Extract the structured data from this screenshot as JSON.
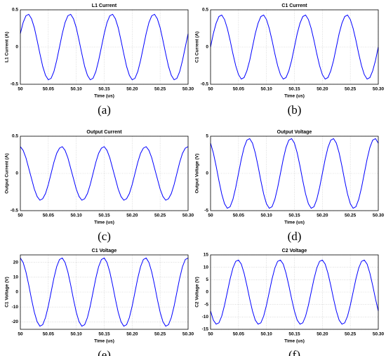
{
  "chart_data": [
    {
      "type": "line",
      "title": "L1 Current",
      "xlabel": "Time (us)",
      "ylabel": "L1 Current (A)",
      "caption": "(a)",
      "color": "#0000ff",
      "grid": true,
      "x": [
        50,
        50.005,
        50.01,
        50.015,
        50.02,
        50.025,
        50.03,
        50.035,
        50.04,
        50.045,
        50.05,
        50.055,
        50.06,
        50.065,
        50.07,
        50.075,
        50.08,
        50.085,
        50.09,
        50.095,
        50.1,
        50.105,
        50.11,
        50.115,
        50.12,
        50.125,
        50.13,
        50.135,
        50.14,
        50.145,
        50.15,
        50.155,
        50.16,
        50.165,
        50.17,
        50.175,
        50.18,
        50.185,
        50.19,
        50.195,
        50.2,
        50.205,
        50.21,
        50.215,
        50.22,
        50.225,
        50.23,
        50.235,
        50.24,
        50.245,
        50.25,
        50.255,
        50.26,
        50.265,
        50.27,
        50.275,
        50.28,
        50.285,
        50.29,
        50.295,
        50.3
      ],
      "values": [
        0.18,
        0.33,
        0.42,
        0.44,
        0.38,
        0.26,
        0.09,
        -0.09,
        -0.26,
        -0.38,
        -0.44,
        -0.42,
        -0.33,
        -0.18,
        0,
        0.18,
        0.33,
        0.42,
        0.44,
        0.38,
        0.26,
        0.09,
        -0.09,
        -0.26,
        -0.38,
        -0.44,
        -0.42,
        -0.33,
        -0.18,
        0,
        0.18,
        0.33,
        0.42,
        0.44,
        0.38,
        0.26,
        0.09,
        -0.09,
        -0.26,
        -0.38,
        -0.44,
        -0.42,
        -0.33,
        -0.18,
        0,
        0.18,
        0.33,
        0.42,
        0.44,
        0.38,
        0.26,
        0.09,
        -0.09,
        -0.26,
        -0.38,
        -0.44,
        -0.42,
        -0.33,
        -0.18,
        0,
        0.18
      ],
      "xlim": [
        50,
        50.3
      ],
      "xticks": [
        50,
        50.05,
        {
          "value": 50.1,
          "label": "50.10"
        },
        50.15,
        {
          "value": 50.2,
          "label": "50.20"
        },
        50.25,
        {
          "value": 50.3,
          "label": "50.30"
        }
      ],
      "ylim": [
        -0.5,
        0.5
      ],
      "yticks": [
        -0.5,
        0,
        0.5
      ]
    },
    {
      "type": "line",
      "title": "C1 Current",
      "xlabel": "Time (us)",
      "ylabel": "C1 Current (A)",
      "caption": "(b)",
      "color": "#0000ff",
      "grid": true,
      "x": [
        50,
        50.005,
        50.01,
        50.015,
        50.02,
        50.025,
        50.03,
        50.035,
        50.04,
        50.045,
        50.05,
        50.055,
        50.06,
        50.065,
        50.07,
        50.075,
        50.08,
        50.085,
        50.09,
        50.095,
        50.1,
        50.105,
        50.11,
        50.115,
        50.12,
        50.125,
        50.13,
        50.135,
        50.14,
        50.145,
        50.15,
        50.155,
        50.16,
        50.165,
        50.17,
        50.175,
        50.18,
        50.185,
        50.19,
        50.195,
        50.2,
        50.205,
        50.21,
        50.215,
        50.22,
        50.225,
        50.23,
        50.235,
        50.24,
        50.245,
        50.25,
        50.255,
        50.26,
        50.265,
        50.27,
        50.275,
        50.28,
        50.285,
        50.29,
        50.295,
        50.3
      ],
      "values": [
        0,
        0.18,
        0.32,
        0.41,
        0.43,
        0.37,
        0.25,
        0.09,
        -0.09,
        -0.25,
        -0.37,
        -0.43,
        -0.41,
        -0.32,
        -0.18,
        0,
        0.18,
        0.32,
        0.41,
        0.43,
        0.37,
        0.25,
        0.09,
        -0.09,
        -0.25,
        -0.37,
        -0.43,
        -0.41,
        -0.32,
        -0.18,
        0,
        0.18,
        0.32,
        0.41,
        0.43,
        0.37,
        0.25,
        0.09,
        -0.09,
        -0.25,
        -0.37,
        -0.43,
        -0.41,
        -0.32,
        -0.18,
        0,
        0.18,
        0.32,
        0.41,
        0.43,
        0.37,
        0.25,
        0.09,
        -0.09,
        -0.25,
        -0.37,
        -0.43,
        -0.41,
        -0.32,
        -0.18,
        0
      ],
      "xlim": [
        50,
        50.3
      ],
      "xticks": [
        50,
        50.05,
        {
          "value": 50.1,
          "label": "50.10"
        },
        50.15,
        {
          "value": 50.2,
          "label": "50.20"
        },
        50.25,
        {
          "value": 50.3,
          "label": "50.30"
        }
      ],
      "ylim": [
        -0.5,
        0.5
      ],
      "yticks": [
        -0.5,
        0,
        0.5
      ]
    },
    {
      "type": "line",
      "title": "Output Current",
      "xlabel": "Time (us)",
      "ylabel": "Output Current (A)",
      "caption": "(c)",
      "color": "#0000ff",
      "grid": true,
      "x": [
        50,
        50.005,
        50.01,
        50.015,
        50.02,
        50.025,
        50.03,
        50.035,
        50.04,
        50.045,
        50.05,
        50.055,
        50.06,
        50.065,
        50.07,
        50.075,
        50.08,
        50.085,
        50.09,
        50.095,
        50.1,
        50.105,
        50.11,
        50.115,
        50.12,
        50.125,
        50.13,
        50.135,
        50.14,
        50.145,
        50.15,
        50.155,
        50.16,
        50.165,
        50.17,
        50.175,
        50.18,
        50.185,
        50.19,
        50.195,
        50.2,
        50.205,
        50.21,
        50.215,
        50.22,
        50.225,
        50.23,
        50.235,
        50.24,
        50.245,
        50.25,
        50.255,
        50.26,
        50.265,
        50.27,
        50.275,
        50.28,
        50.285,
        50.29,
        50.295,
        50.3
      ],
      "values": [
        0.36,
        0.31,
        0.21,
        0.07,
        -0.07,
        -0.21,
        -0.31,
        -0.36,
        -0.34,
        -0.27,
        -0.15,
        0,
        0.15,
        0.27,
        0.34,
        0.36,
        0.31,
        0.21,
        0.07,
        -0.07,
        -0.21,
        -0.31,
        -0.36,
        -0.34,
        -0.27,
        -0.15,
        0,
        0.15,
        0.27,
        0.34,
        0.36,
        0.31,
        0.21,
        0.07,
        -0.07,
        -0.21,
        -0.31,
        -0.36,
        -0.34,
        -0.27,
        -0.15,
        0,
        0.15,
        0.27,
        0.34,
        0.36,
        0.31,
        0.21,
        0.07,
        -0.07,
        -0.21,
        -0.31,
        -0.36,
        -0.34,
        -0.27,
        -0.15,
        0,
        0.15,
        0.27,
        0.34,
        0.36
      ],
      "xlim": [
        50,
        50.3
      ],
      "xticks": [
        50,
        50.05,
        {
          "value": 50.1,
          "label": "50.10"
        },
        50.15,
        {
          "value": 50.2,
          "label": "50.20"
        },
        50.25,
        {
          "value": 50.3,
          "label": "50.30"
        }
      ],
      "ylim": [
        -0.5,
        0.5
      ],
      "yticks": [
        -0.5,
        0,
        0.5
      ]
    },
    {
      "type": "line",
      "title": "Output Voltage",
      "xlabel": "Time (us)",
      "ylabel": "Output Voltage (V)",
      "caption": "(d)",
      "color": "#0000ff",
      "grid": true,
      "x": [
        50,
        50.005,
        50.01,
        50.015,
        50.02,
        50.025,
        50.03,
        50.035,
        50.04,
        50.045,
        50.05,
        50.055,
        50.06,
        50.065,
        50.07,
        50.075,
        50.08,
        50.085,
        50.09,
        50.095,
        50.1,
        50.105,
        50.11,
        50.115,
        50.12,
        50.125,
        50.13,
        50.135,
        50.14,
        50.145,
        50.15,
        50.155,
        50.16,
        50.165,
        50.17,
        50.175,
        50.18,
        50.185,
        50.19,
        50.195,
        50.2,
        50.205,
        50.21,
        50.215,
        50.22,
        50.225,
        50.23,
        50.235,
        50.24,
        50.245,
        50.25,
        50.255,
        50.26,
        50.265,
        50.27,
        50.275,
        50.28,
        50.285,
        50.29,
        50.295,
        50.3
      ],
      "values": [
        4.07,
        2.76,
        0.98,
        -0.98,
        -2.76,
        -4.07,
        -4.68,
        -4.47,
        -3.49,
        -1.91,
        0,
        1.91,
        3.49,
        4.47,
        4.68,
        4.07,
        2.76,
        0.98,
        -0.98,
        -2.76,
        -4.07,
        -4.68,
        -4.47,
        -3.49,
        -1.91,
        0,
        1.91,
        3.49,
        4.47,
        4.68,
        4.07,
        2.76,
        0.98,
        -0.98,
        -2.76,
        -4.07,
        -4.68,
        -4.47,
        -3.49,
        -1.91,
        0,
        1.91,
        3.49,
        4.47,
        4.68,
        4.07,
        2.76,
        0.98,
        -0.98,
        -2.76,
        -4.07,
        -4.68,
        -4.47,
        -3.49,
        -1.91,
        0,
        1.91,
        3.49,
        4.47,
        4.68,
        4.07
      ],
      "xlim": [
        50,
        50.3
      ],
      "xticks": [
        50,
        50.05,
        {
          "value": 50.1,
          "label": "50.10"
        },
        50.15,
        {
          "value": 50.2,
          "label": "50.20"
        },
        50.25,
        {
          "value": 50.3,
          "label": "50.30"
        }
      ],
      "ylim": [
        -5,
        5
      ],
      "yticks": [
        -5,
        0,
        5
      ]
    },
    {
      "type": "line",
      "title": "C1 Voltage",
      "xlabel": "Time (us)",
      "ylabel": "C1 Voltage (V)",
      "caption": "(e)",
      "color": "#0000ff",
      "grid": true,
      "x": [
        50,
        50.005,
        50.01,
        50.015,
        50.02,
        50.025,
        50.03,
        50.035,
        50.04,
        50.045,
        50.05,
        50.055,
        50.06,
        50.065,
        50.07,
        50.075,
        50.08,
        50.085,
        50.09,
        50.095,
        50.1,
        50.105,
        50.11,
        50.115,
        50.12,
        50.125,
        50.13,
        50.135,
        50.14,
        50.145,
        50.15,
        50.155,
        50.16,
        50.165,
        50.17,
        50.175,
        50.18,
        50.185,
        50.19,
        50.195,
        50.2,
        50.205,
        50.21,
        50.215,
        50.22,
        50.225,
        50.23,
        50.235,
        50.24,
        50.245,
        50.25,
        50.255,
        50.26,
        50.265,
        50.27,
        50.275,
        50.28,
        50.285,
        50.29,
        50.295,
        50.3
      ],
      "values": [
        22.9,
        19.9,
        13.5,
        4.8,
        -4.8,
        -13.5,
        -19.9,
        -22.9,
        -21.9,
        -17.1,
        -9.4,
        0,
        9.4,
        17.1,
        21.9,
        22.9,
        19.9,
        13.5,
        4.8,
        -4.8,
        -13.5,
        -19.9,
        -22.9,
        -21.9,
        -17.1,
        -9.4,
        0,
        9.4,
        17.1,
        21.9,
        22.9,
        19.9,
        13.5,
        4.8,
        -4.8,
        -13.5,
        -19.9,
        -22.9,
        -21.9,
        -17.1,
        -9.4,
        0,
        9.4,
        17.1,
        21.9,
        22.9,
        19.9,
        13.5,
        4.8,
        -4.8,
        -13.5,
        -19.9,
        -22.9,
        -21.9,
        -17.1,
        -9.4,
        0,
        9.4,
        17.1,
        21.9,
        22.9
      ],
      "xlim": [
        50,
        50.3
      ],
      "xticks": [
        50,
        50.05,
        {
          "value": 50.1,
          "label": "50.10"
        },
        50.15,
        {
          "value": 50.2,
          "label": "50.20"
        },
        50.25,
        {
          "value": 50.3,
          "label": "50.30"
        }
      ],
      "ylim": [
        -25,
        25
      ],
      "yticks": [
        -20,
        -10,
        0,
        10,
        20
      ]
    },
    {
      "type": "line",
      "title": "C2 Voltage",
      "xlabel": "Time (us)",
      "ylabel": "C2 Voltage (V)",
      "caption": "(f)",
      "color": "#0000ff",
      "grid": true,
      "x": [
        50,
        50.005,
        50.01,
        50.015,
        50.02,
        50.025,
        50.03,
        50.035,
        50.04,
        50.045,
        50.05,
        50.055,
        50.06,
        50.065,
        50.07,
        50.075,
        50.08,
        50.085,
        50.09,
        50.095,
        50.1,
        50.105,
        50.11,
        50.115,
        50.12,
        50.125,
        50.13,
        50.135,
        50.14,
        50.145,
        50.15,
        50.155,
        50.16,
        50.165,
        50.17,
        50.175,
        50.18,
        50.185,
        50.19,
        50.195,
        50.2,
        50.205,
        50.21,
        50.215,
        50.22,
        50.225,
        50.23,
        50.235,
        50.24,
        50.245,
        50.25,
        50.255,
        50.26,
        50.265,
        50.27,
        50.275,
        50.28,
        50.285,
        50.29,
        50.295,
        50.3
      ],
      "values": [
        -7.6,
        -11.3,
        -12.9,
        -12.4,
        -9.7,
        -5.3,
        0,
        5.3,
        9.7,
        12.4,
        12.9,
        11.3,
        7.6,
        2.7,
        -2.7,
        -7.6,
        -11.3,
        -12.9,
        -12.4,
        -9.7,
        -5.3,
        0,
        5.3,
        9.7,
        12.4,
        12.9,
        11.3,
        7.6,
        2.7,
        -2.7,
        -7.6,
        -11.3,
        -12.9,
        -12.4,
        -9.7,
        -5.3,
        0,
        5.3,
        9.7,
        12.4,
        12.9,
        11.3,
        7.6,
        2.7,
        -2.7,
        -7.6,
        -11.3,
        -12.9,
        -12.4,
        -9.7,
        -5.3,
        0,
        5.3,
        9.7,
        12.4,
        12.9,
        11.3,
        7.6,
        2.7,
        -2.7,
        -7.6
      ],
      "xlim": [
        50,
        50.3
      ],
      "xticks": [
        50,
        50.05,
        {
          "value": 50.1,
          "label": "50.10"
        },
        50.15,
        {
          "value": 50.2,
          "label": "50.20"
        },
        50.25,
        {
          "value": 50.3,
          "label": "50.30"
        }
      ],
      "ylim": [
        -15,
        15
      ],
      "yticks": [
        -15,
        -10,
        -5,
        0,
        5,
        10,
        15
      ]
    }
  ]
}
